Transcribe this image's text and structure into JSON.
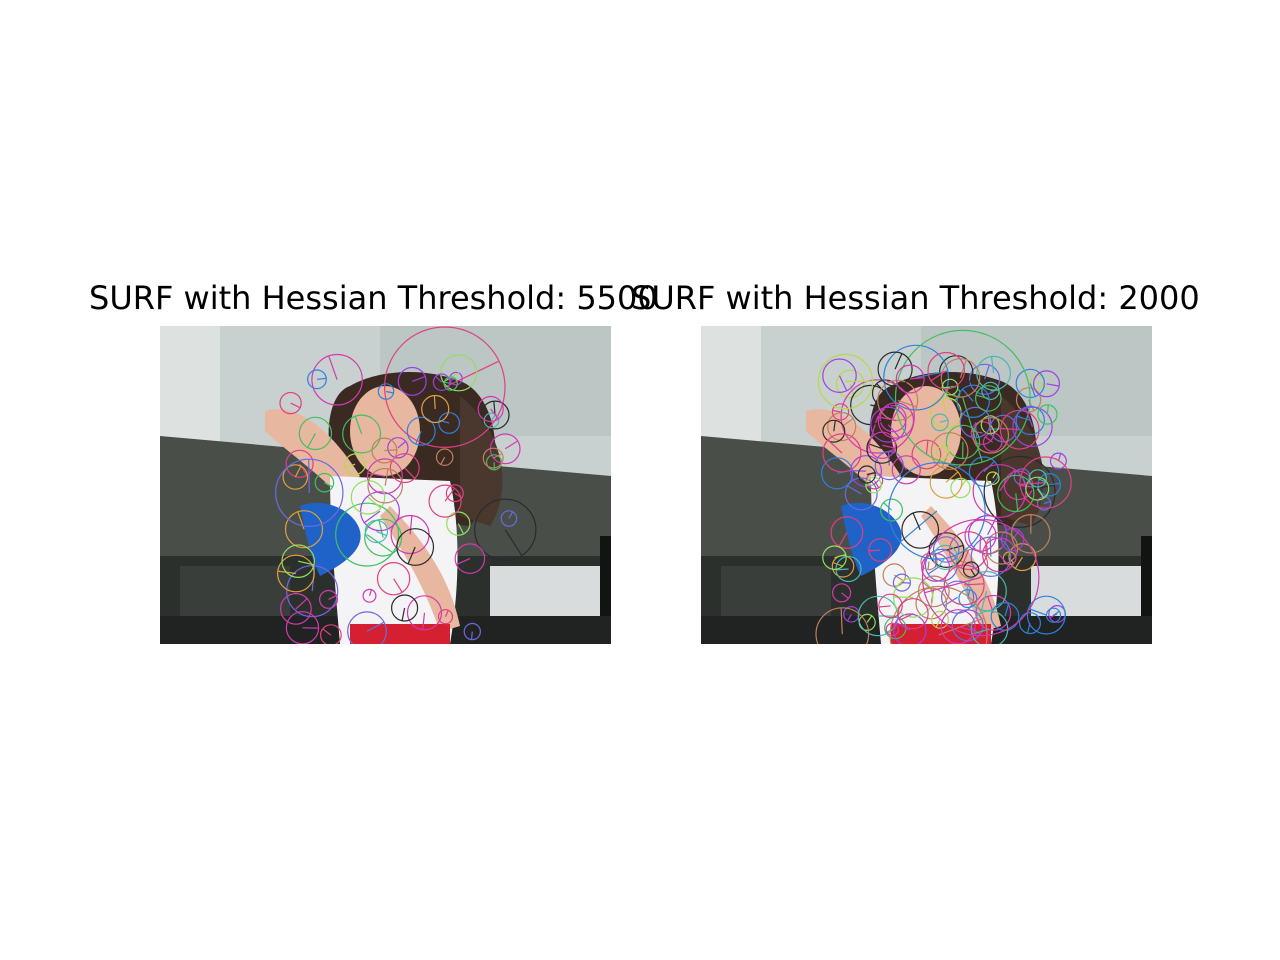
{
  "figure": {
    "panels": [
      {
        "title": "SURF with Hessian Threshold: 5500",
        "threshold": 5500,
        "keypoint_count": 60,
        "image_description": "girl dancing, arm raised, blue pom-pom, white outfit"
      },
      {
        "title": "SURF with Hessian Threshold: 2000",
        "threshold": 2000,
        "keypoint_count": 130,
        "image_description": "same photo with denser SURF keypoints"
      }
    ]
  },
  "colors": {
    "wall": "#c9d1d0",
    "overhang": "#4a4e49",
    "window_light": "#d9dcdc",
    "skin": "#e8b7a0",
    "hair": "#3a2a22",
    "shirt": "#f4f4f6",
    "pompom": "#1f63c8",
    "belt": "#d42030"
  }
}
